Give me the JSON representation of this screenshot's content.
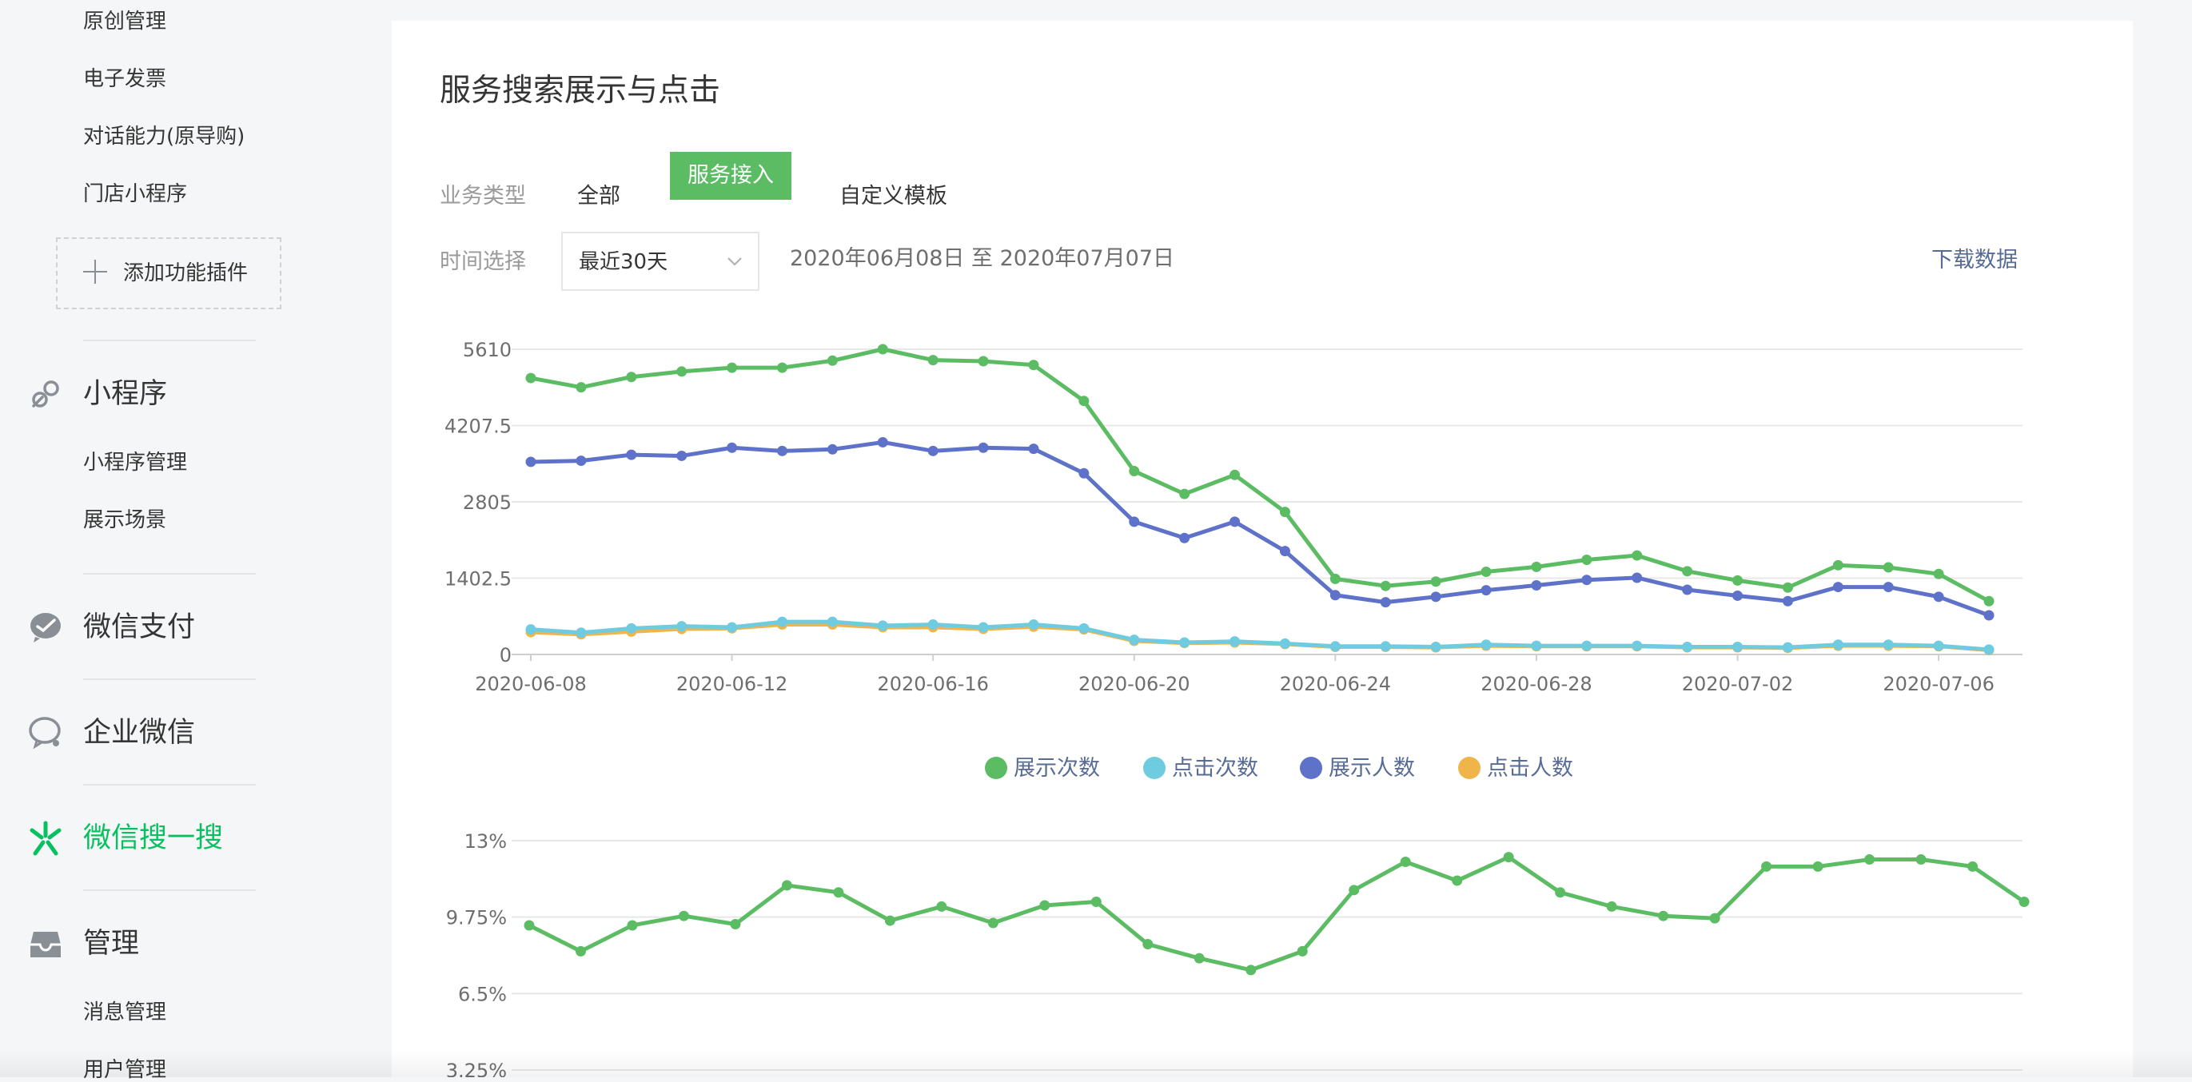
{
  "sidebar": {
    "plugin_items": [
      "原创管理",
      "电子发票",
      "对话能力(原导购)",
      "门店小程序"
    ],
    "add_plugin_label": "添加功能插件",
    "miniprogram": {
      "label": "小程序",
      "items": [
        "小程序管理",
        "展示场景"
      ]
    },
    "wechat_pay": {
      "label": "微信支付"
    },
    "wework": {
      "label": "企业微信"
    },
    "search": {
      "label": "微信搜一搜",
      "active": true
    },
    "manage": {
      "label": "管理",
      "items": [
        "消息管理",
        "用户管理"
      ]
    },
    "icons": {
      "miniprogram": "link-icon",
      "wechat_pay": "wechat-pay-icon",
      "wework": "wework-icon",
      "search": "search-sparkle-icon",
      "manage": "inbox-icon"
    }
  },
  "main": {
    "title": "服务搜索展示与点击",
    "biz_type_label": "业务类型",
    "biz_types": [
      "全部",
      "服务接入",
      "自定义模板"
    ],
    "biz_type_selected": "服务接入",
    "time_label": "时间选择",
    "time_selected": "最近30天",
    "date_range": "2020年06月08日 至 2020年07月07日",
    "download_label": "下载数据"
  },
  "colors": {
    "accent": "#07c160",
    "active_button": "#5cbc63",
    "link": "#576b95",
    "series_show_count": "#5cbc63",
    "series_click_count": "#6ecbe0",
    "series_show_users": "#5f72c9",
    "series_click_users": "#f0b54a"
  },
  "chart_data": [
    {
      "type": "line",
      "x": [
        "2020-06-08",
        "2020-06-09",
        "2020-06-10",
        "2020-06-11",
        "2020-06-12",
        "2020-06-13",
        "2020-06-14",
        "2020-06-15",
        "2020-06-16",
        "2020-06-17",
        "2020-06-18",
        "2020-06-19",
        "2020-06-20",
        "2020-06-21",
        "2020-06-22",
        "2020-06-23",
        "2020-06-24",
        "2020-06-25",
        "2020-06-26",
        "2020-06-27",
        "2020-06-28",
        "2020-06-29",
        "2020-06-30",
        "2020-07-01",
        "2020-07-02",
        "2020-07-03",
        "2020-07-04",
        "2020-07-05",
        "2020-07-06",
        "2020-07-07"
      ],
      "x_tick_labels": [
        "2020-06-08",
        "2020-06-12",
        "2020-06-16",
        "2020-06-20",
        "2020-06-24",
        "2020-06-28",
        "2020-07-02",
        "2020-07-06"
      ],
      "y_tick_labels": [
        "0",
        "1402.5",
        "2805",
        "4207.5",
        "5610"
      ],
      "ylim": [
        0,
        5610
      ],
      "grid": true,
      "legend_position": "bottom-center",
      "series": [
        {
          "name": "展示次数",
          "color": "#5cbc63",
          "values": [
            5080,
            4910,
            5100,
            5200,
            5270,
            5270,
            5400,
            5610,
            5410,
            5390,
            5320,
            4660,
            3370,
            2950,
            3300,
            2620,
            1390,
            1260,
            1340,
            1520,
            1610,
            1740,
            1820,
            1530,
            1360,
            1230,
            1640,
            1600,
            1480,
            980
          ]
        },
        {
          "name": "点击次数",
          "color": "#6ecbe0",
          "values": [
            460,
            400,
            480,
            520,
            500,
            600,
            600,
            530,
            550,
            500,
            550,
            480,
            270,
            220,
            240,
            200,
            150,
            150,
            140,
            180,
            160,
            160,
            160,
            140,
            140,
            130,
            180,
            180,
            160,
            90
          ]
        },
        {
          "name": "展示人数",
          "color": "#5f72c9",
          "values": [
            3540,
            3560,
            3670,
            3650,
            3800,
            3740,
            3770,
            3900,
            3740,
            3800,
            3780,
            3330,
            2440,
            2140,
            2440,
            1900,
            1090,
            960,
            1060,
            1180,
            1270,
            1370,
            1410,
            1190,
            1080,
            980,
            1240,
            1240,
            1060,
            720
          ]
        },
        {
          "name": "点击人数",
          "color": "#f0b54a",
          "values": [
            410,
            370,
            420,
            470,
            480,
            550,
            550,
            500,
            500,
            470,
            510,
            460,
            250,
            210,
            220,
            190,
            140,
            140,
            130,
            160,
            150,
            150,
            150,
            130,
            130,
            120,
            160,
            160,
            150,
            80
          ]
        }
      ]
    },
    {
      "type": "line",
      "x": [
        "2020-06-08",
        "2020-06-09",
        "2020-06-10",
        "2020-06-11",
        "2020-06-12",
        "2020-06-13",
        "2020-06-14",
        "2020-06-15",
        "2020-06-16",
        "2020-06-17",
        "2020-06-18",
        "2020-06-19",
        "2020-06-20",
        "2020-06-21",
        "2020-06-22",
        "2020-06-23",
        "2020-06-24",
        "2020-06-25",
        "2020-06-26",
        "2020-06-27",
        "2020-06-28",
        "2020-06-29",
        "2020-06-30",
        "2020-07-01",
        "2020-07-02",
        "2020-07-03",
        "2020-07-04",
        "2020-07-05",
        "2020-07-06",
        "2020-07-07"
      ],
      "y_tick_labels": [
        "3.25%",
        "6.5%",
        "9.75%",
        "13%"
      ],
      "ylim": [
        3.25,
        13
      ],
      "grid": true,
      "series": [
        {
          "color": "#5cbc63",
          "values": [
            9.4,
            8.3,
            9.4,
            9.8,
            9.45,
            11.1,
            10.8,
            9.6,
            10.2,
            9.5,
            10.25,
            10.4,
            8.6,
            8.0,
            7.5,
            8.3,
            10.9,
            12.1,
            11.3,
            12.3,
            10.8,
            10.2,
            9.8,
            9.7,
            11.9,
            11.9,
            12.2,
            12.2,
            11.9,
            10.4
          ]
        }
      ]
    }
  ]
}
